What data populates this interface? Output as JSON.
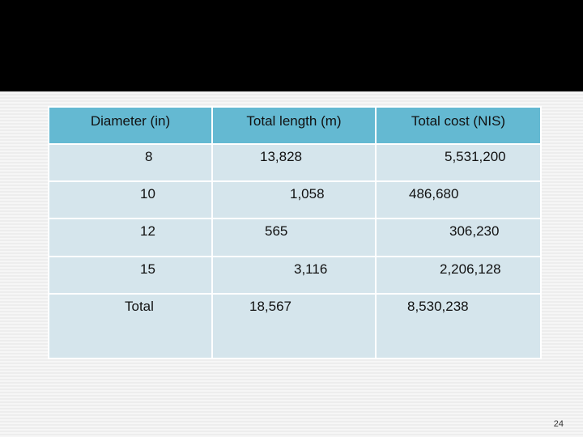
{
  "slide": {
    "page_number": "24"
  },
  "table": {
    "headers": [
      "Diameter (in)",
      "Total length (m)",
      "Total cost (NIS)"
    ],
    "rows": [
      [
        "8",
        "13,828",
        "5,531,200"
      ],
      [
        "10",
        "1,058",
        "486,680"
      ],
      [
        "12",
        "565",
        "306,230"
      ],
      [
        "15",
        "3,116",
        "2,206,128"
      ],
      [
        "Total",
        "18,567",
        "8,530,238"
      ]
    ]
  },
  "colors": {
    "header_fill": "#64b9d2",
    "row_fill": "#d5e5ec",
    "title_bar": "#000000"
  }
}
